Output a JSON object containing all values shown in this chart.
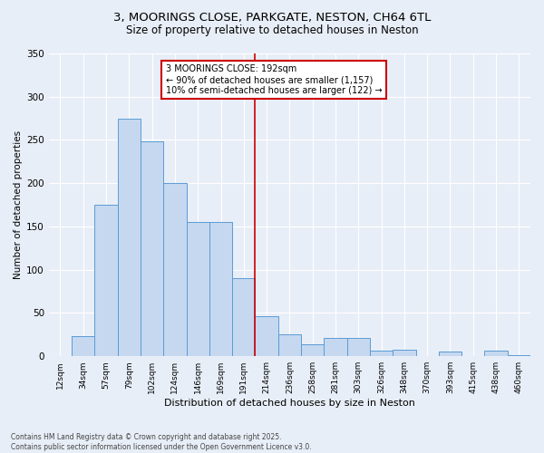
{
  "title_line1": "3, MOORINGS CLOSE, PARKGATE, NESTON, CH64 6TL",
  "title_line2": "Size of property relative to detached houses in Neston",
  "xlabel": "Distribution of detached houses by size in Neston",
  "ylabel": "Number of detached properties",
  "footnote": "Contains HM Land Registry data © Crown copyright and database right 2025.\nContains public sector information licensed under the Open Government Licence v3.0.",
  "bar_labels": [
    "12sqm",
    "34sqm",
    "57sqm",
    "79sqm",
    "102sqm",
    "124sqm",
    "146sqm",
    "169sqm",
    "191sqm",
    "214sqm",
    "236sqm",
    "258sqm",
    "281sqm",
    "303sqm",
    "326sqm",
    "348sqm",
    "370sqm",
    "393sqm",
    "415sqm",
    "438sqm",
    "460sqm"
  ],
  "bar_values": [
    0,
    23,
    175,
    275,
    248,
    200,
    155,
    155,
    90,
    46,
    25,
    14,
    21,
    21,
    6,
    8,
    0,
    5,
    0,
    6,
    1
  ],
  "bar_color": "#c5d8f0",
  "bar_edge_color": "#5b9bd5",
  "bg_color": "#e8eef7",
  "grid_color": "#ffffff",
  "vline_index": 8,
  "annotation_text": "3 MOORINGS CLOSE: 192sqm\n← 90% of detached houses are smaller (1,157)\n10% of semi-detached houses are larger (122) →",
  "annotation_box_color": "#ffffff",
  "annotation_border_color": "#cc0000",
  "vline_color": "#cc0000",
  "ylim": [
    0,
    350
  ],
  "yticks": [
    0,
    50,
    100,
    150,
    200,
    250,
    300,
    350
  ]
}
